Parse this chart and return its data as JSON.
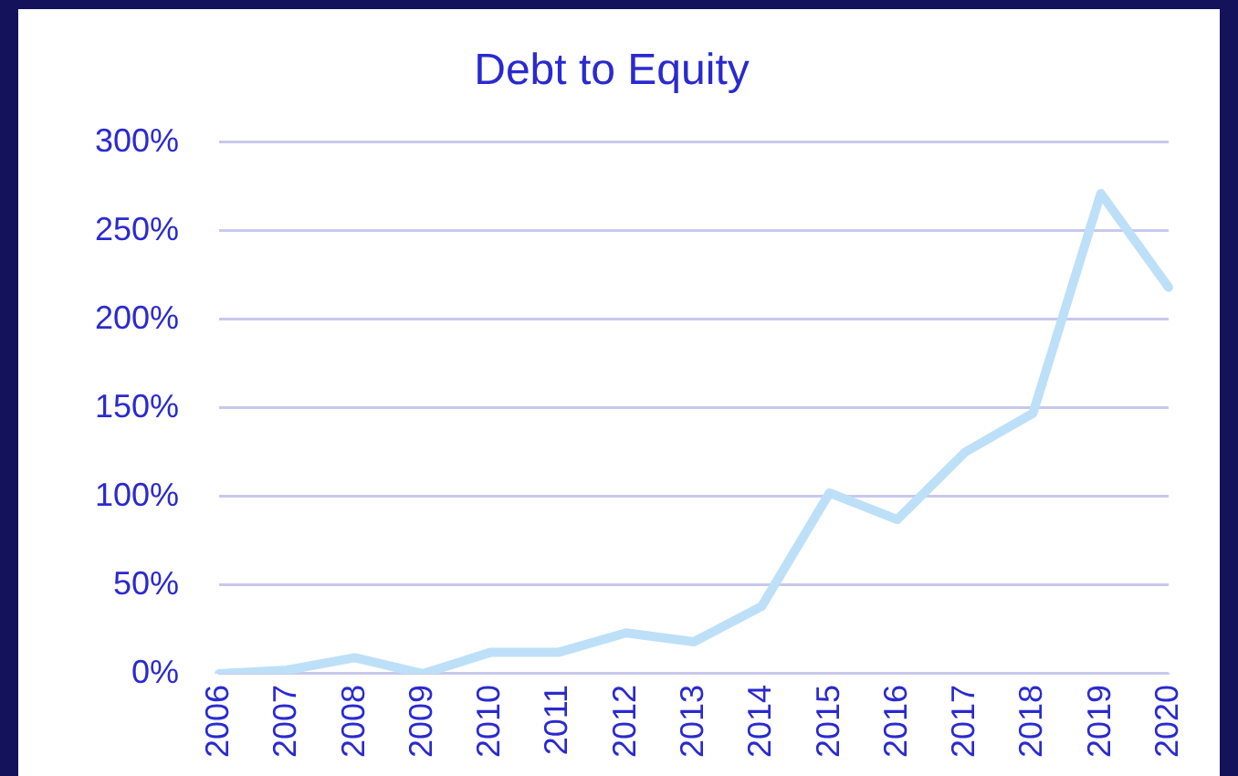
{
  "chart_data": {
    "type": "line",
    "title": "Debt to Equity",
    "categories": [
      "2006",
      "2007",
      "2008",
      "2009",
      "2010",
      "2011",
      "2012",
      "2013",
      "2014",
      "2015",
      "2016",
      "2017",
      "2018",
      "2019",
      "2020"
    ],
    "series": [
      {
        "color": "#bde0f8",
        "values": [
          0,
          2,
          9,
          0,
          12,
          12,
          23,
          18,
          38,
          102,
          87,
          125,
          147,
          271,
          218
        ]
      }
    ],
    "ylim": [
      0,
      300
    ],
    "yticks": [
      {
        "value": 0,
        "label": "0%"
      },
      {
        "value": 50,
        "label": "50%"
      },
      {
        "value": 100,
        "label": "100%"
      },
      {
        "value": 150,
        "label": "150%"
      },
      {
        "value": 200,
        "label": "200%"
      },
      {
        "value": 250,
        "label": "250%"
      },
      {
        "value": 300,
        "label": "300%"
      }
    ],
    "grid": "y",
    "legend": false,
    "marker": "none",
    "line_style": "solid"
  }
}
